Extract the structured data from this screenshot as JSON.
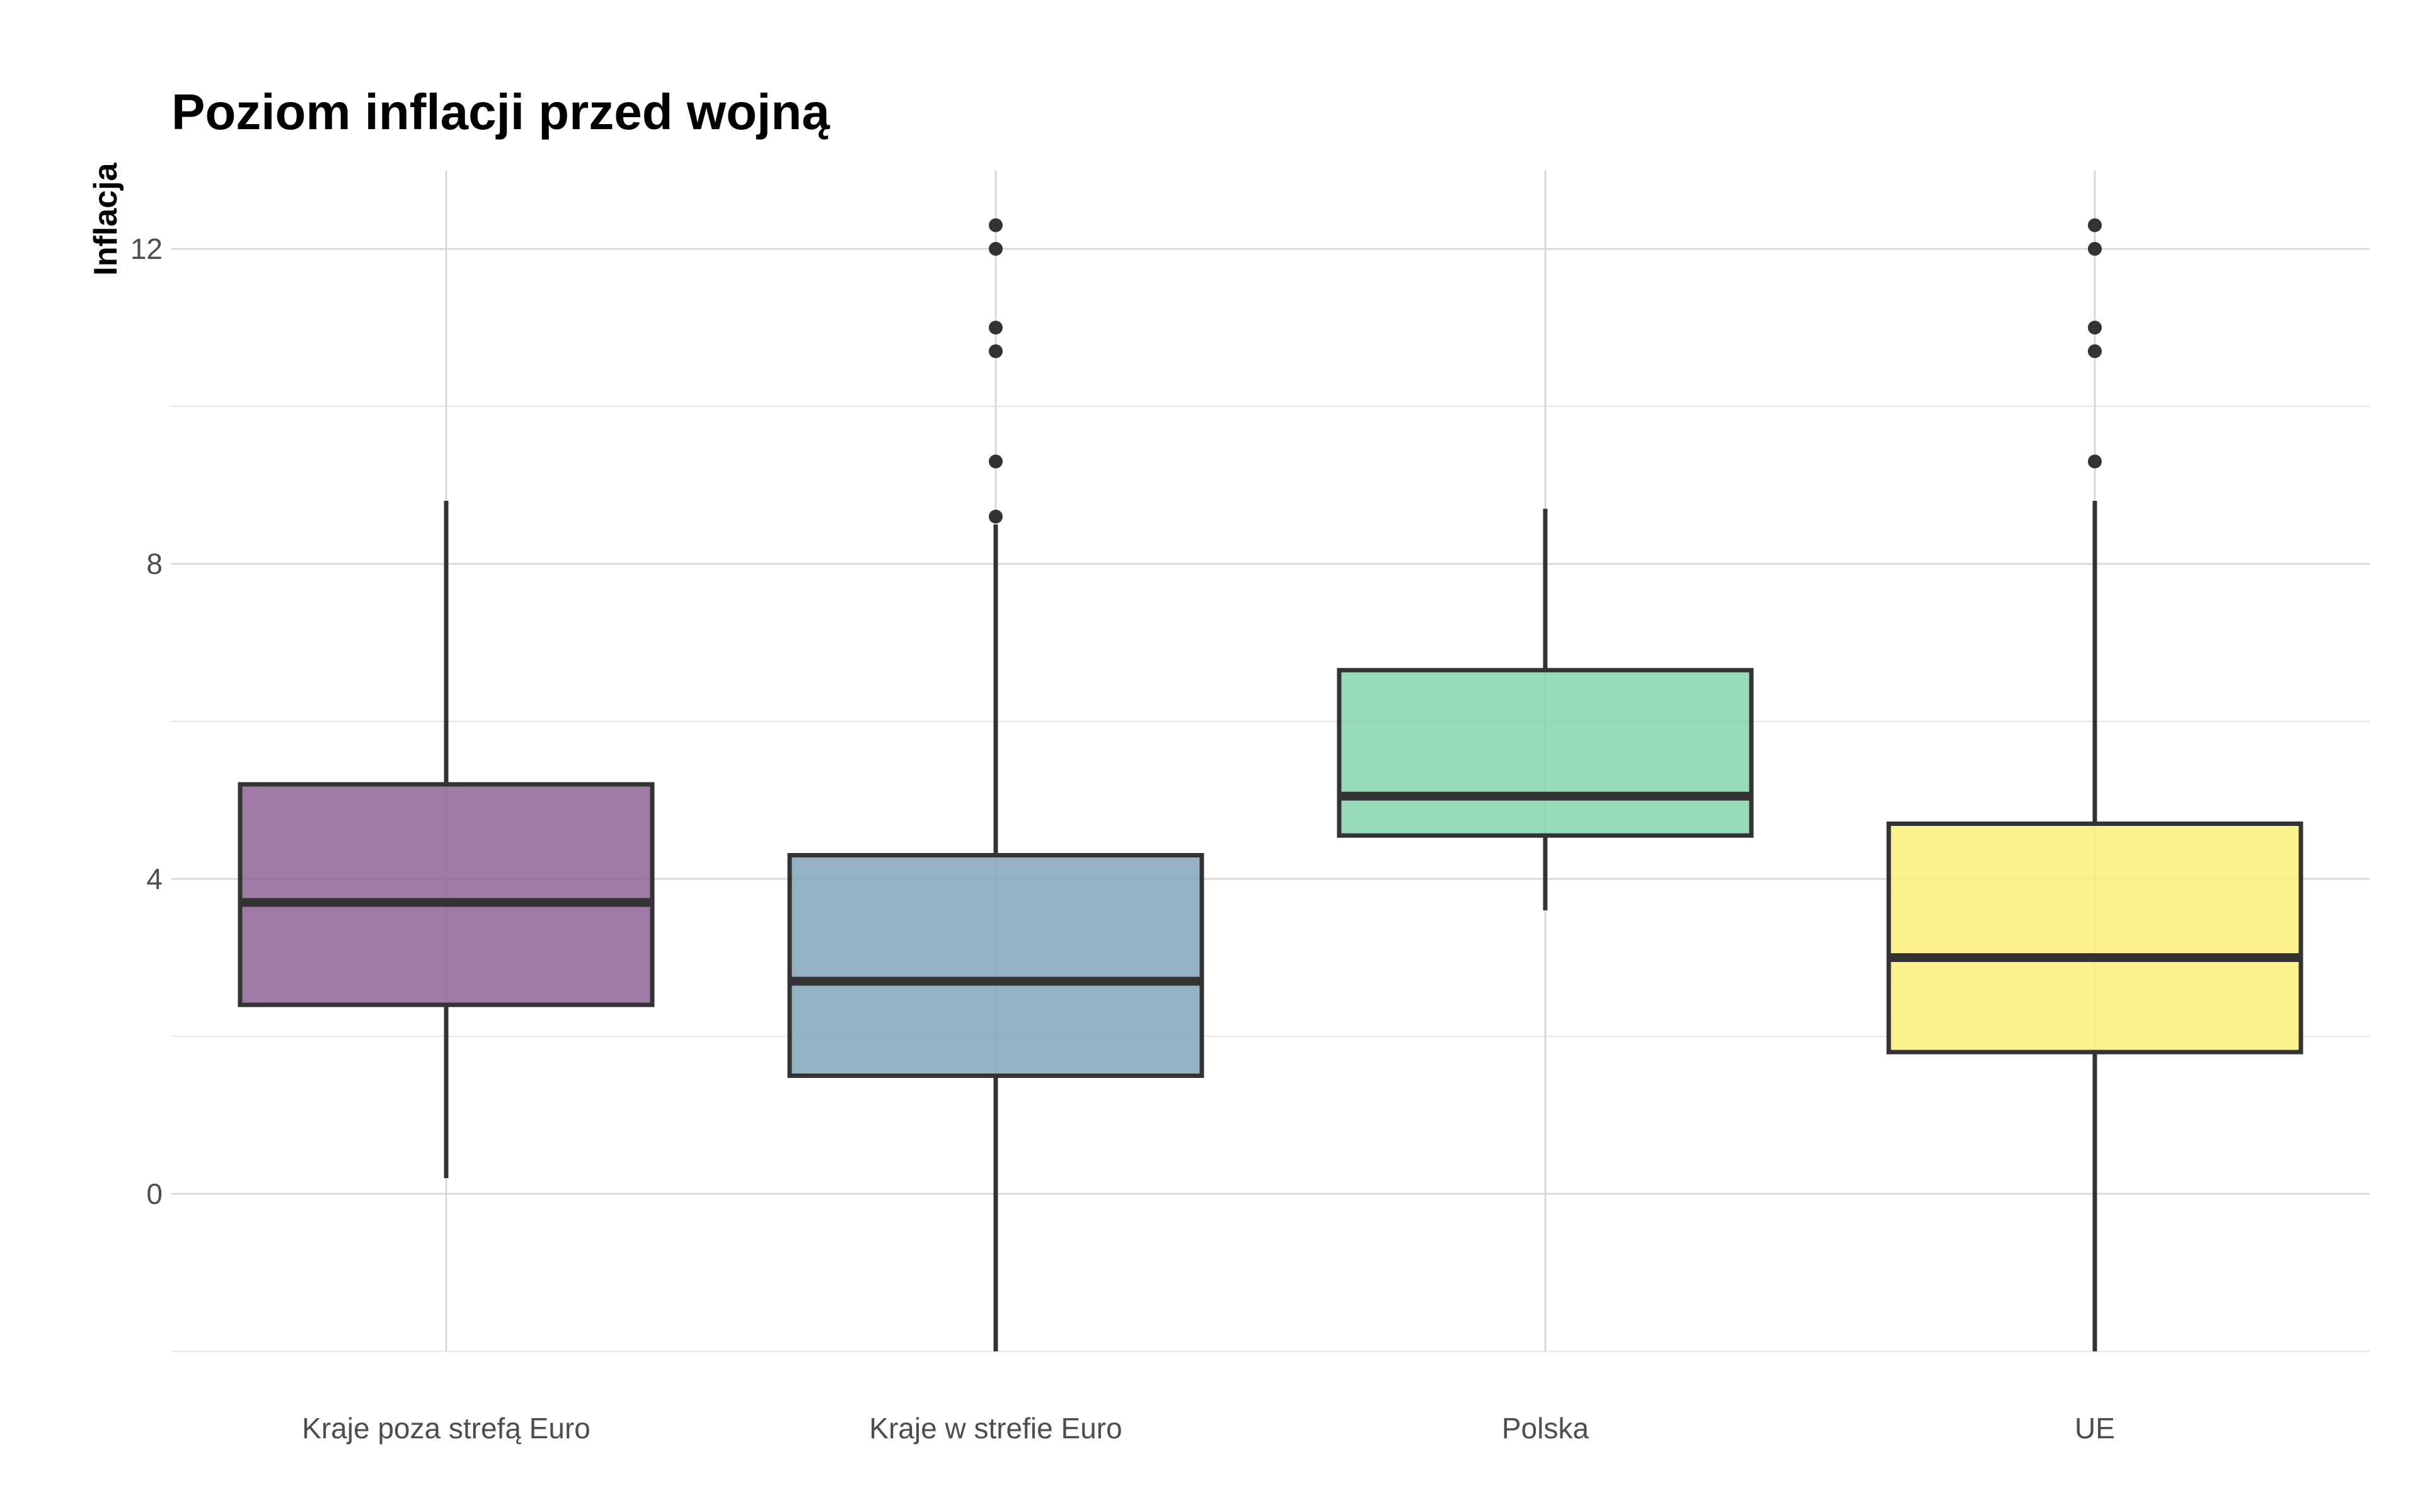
{
  "chart_data": {
    "type": "boxplot",
    "title": "Poziom inflacji przed wojną",
    "xlabel": "",
    "ylabel": "Inflacja",
    "ylim": [
      -2,
      13
    ],
    "y_ticks": [
      0,
      4,
      8,
      12
    ],
    "grid": true,
    "legend": "none",
    "categories": [
      "Kraje poza strefą Euro",
      "Kraje w strefie Euro",
      "Polska",
      "UE"
    ],
    "boxes": [
      {
        "category": "Kraje poza strefą Euro",
        "color": "#8E6496",
        "whisker_low": 0.2,
        "q1": 2.4,
        "median": 3.7,
        "q3": 5.2,
        "whisker_high": 8.8,
        "outliers": []
      },
      {
        "category": "Kraje w strefie Euro",
        "color": "#83A3BB",
        "whisker_low": -2.0,
        "q1": 1.5,
        "median": 2.7,
        "q3": 4.3,
        "whisker_high": 8.5,
        "outliers": [
          8.6,
          9.3,
          10.7,
          11.0,
          12.0,
          12.3
        ]
      },
      {
        "category": "Polska",
        "color": "#84D3AE",
        "whisker_low": 3.6,
        "q1": 4.55,
        "median": 5.05,
        "q3": 6.65,
        "whisker_high": 8.7,
        "outliers": []
      },
      {
        "category": "UE",
        "color": "#FDEE79",
        "whisker_low": -2.0,
        "q1": 1.8,
        "median": 3.0,
        "q3": 4.7,
        "whisker_high": 8.8,
        "outliers": [
          9.3,
          10.7,
          11.0,
          12.0,
          12.3
        ]
      }
    ]
  }
}
